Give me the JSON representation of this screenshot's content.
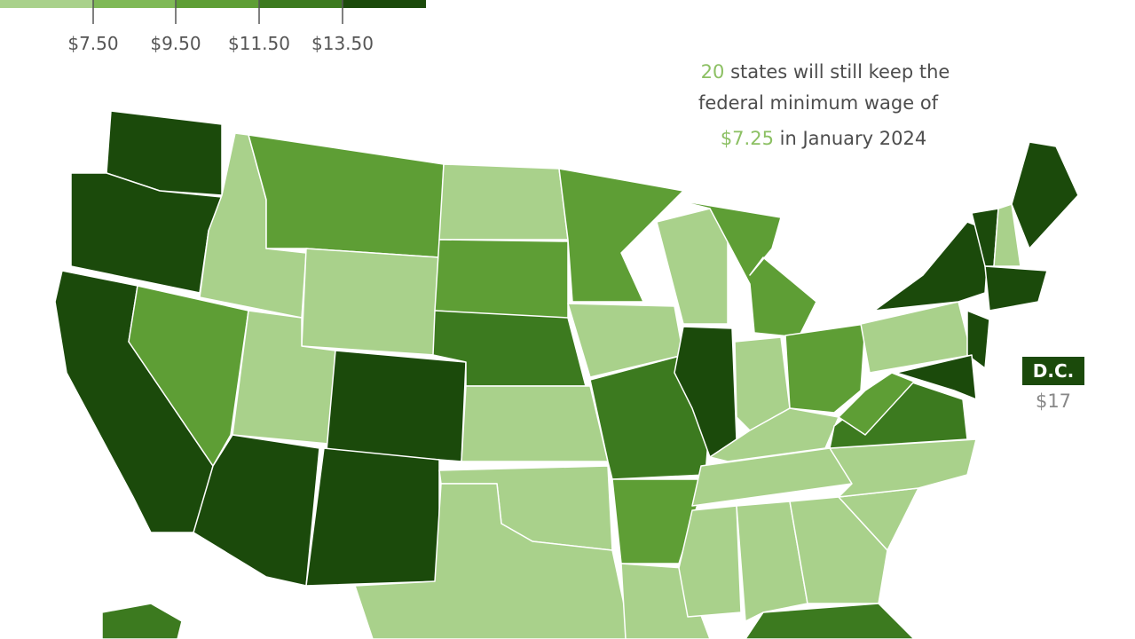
{
  "legend": {
    "ticks": [
      "$7.50",
      "$9.50",
      "$11.50",
      "$13.50"
    ]
  },
  "annotation": {
    "count": "20",
    "line1": "states will still keep the",
    "line2": "federal minimum wage of",
    "wage": "$7.25",
    "line3": "in January 2024"
  },
  "dc": {
    "label": "D.C.",
    "value": "$17"
  }
}
